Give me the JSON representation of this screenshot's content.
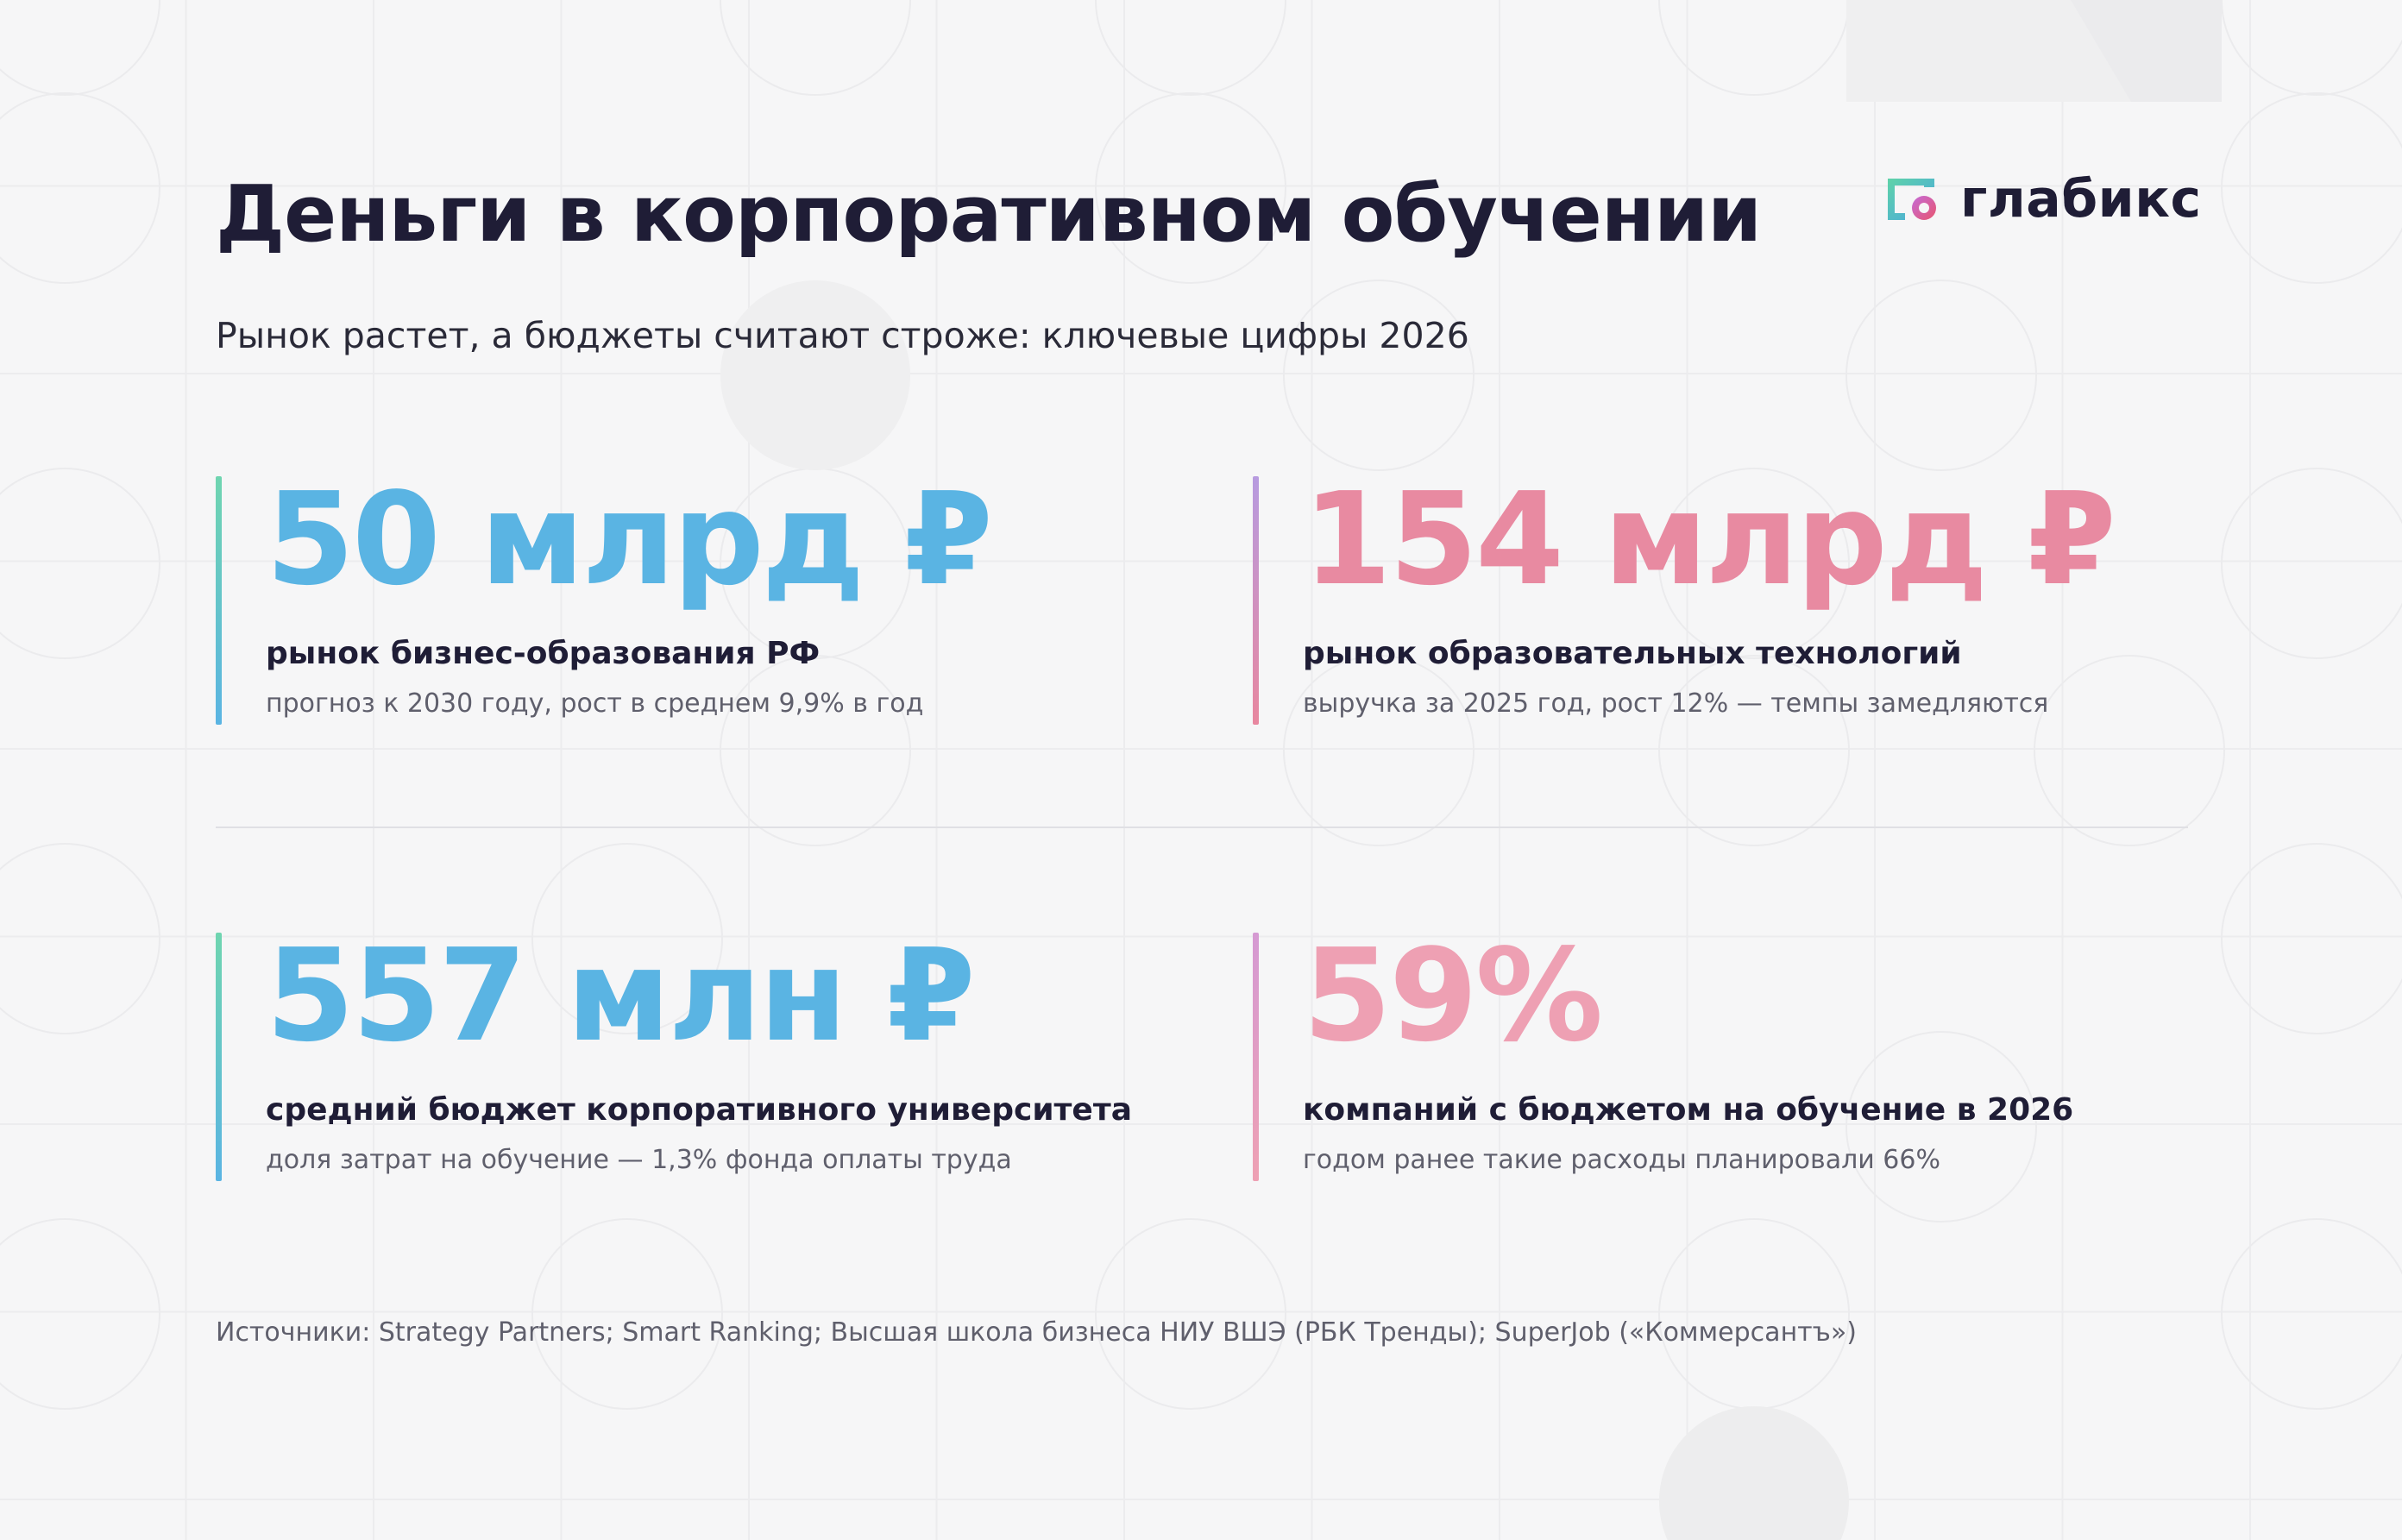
{
  "header": {
    "title": "Деньги в корпоративном обучении",
    "subtitle": "Рынок растет, а бюджеты считают строже: ключевые цифры 2026"
  },
  "logo": {
    "text": "глабикс",
    "icon": "glabix-logo-icon"
  },
  "stats": [
    {
      "value": "50 млрд ₽",
      "label": "рынок бизнес-образования РФ",
      "note": "прогноз к 2030 году, рост в среднем 9,9% в год",
      "color": "#5ab4e3",
      "bar_gradient": [
        "#6fd5b0",
        "#5ab4e3"
      ]
    },
    {
      "value": "154 млрд ₽",
      "label": "рынок образовательных технологий",
      "note": "выручка за 2025 год, рост 12% — темпы замедляются",
      "color": "#e88aa1",
      "bar_gradient": [
        "#b79be0",
        "#e8879f"
      ]
    },
    {
      "value": "557 млн ₽",
      "label": "средний бюджет корпоративного университета",
      "note": "доля затрат на обучение — 1,3% фонда оплаты труда",
      "color": "#5ab4e3",
      "bar_gradient": [
        "#6fd5b0",
        "#5ab4e3"
      ]
    },
    {
      "value": "59%",
      "label": "компаний с бюджетом на обучение в 2026",
      "note": "годом ранее такие расходы планировали 66%",
      "color": "#eea0b3",
      "bar_gradient": [
        "#d59ad3",
        "#eea0b3"
      ]
    }
  ],
  "footer": {
    "sources": "Источники: Strategy Partners; Smart Ranking; Высшая школа бизнеса НИУ ВШЭ (РБК Тренды); SuperJob («Коммерсантъ»)"
  }
}
